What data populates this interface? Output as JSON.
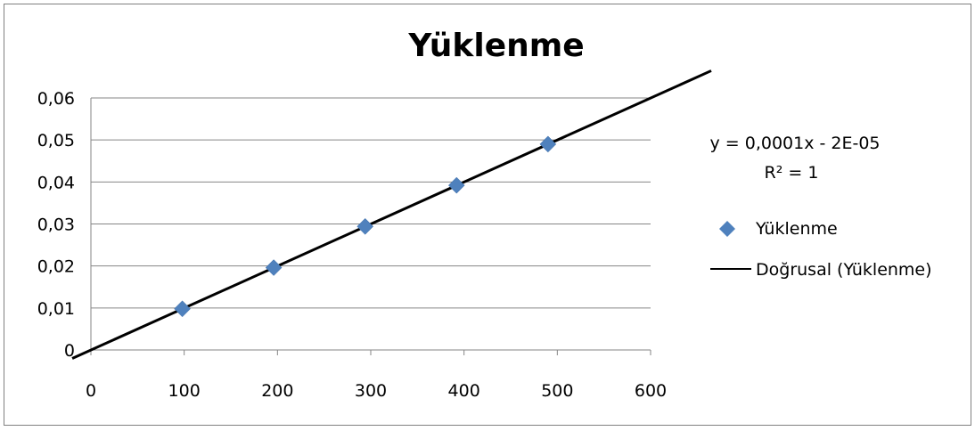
{
  "chart_data": {
    "type": "scatter",
    "title": "Yüklenme",
    "x": [
      98,
      196,
      294,
      392,
      490
    ],
    "series": [
      {
        "name": "Yüklenme",
        "values": [
          0.0098,
          0.0196,
          0.0294,
          0.0392,
          0.049
        ],
        "color": "#4F81BD",
        "marker": "diamond"
      }
    ],
    "trendline": {
      "name": "Doğrusal (Yüklenme)",
      "type": "linear",
      "slope": 0.0001,
      "intercept": -2e-05,
      "color": "#000000"
    },
    "annotations": {
      "equation": "y = 0,0001x - 2E-05",
      "r_squared": "R² = 1"
    },
    "xlim": [
      0,
      600
    ],
    "ylim": [
      0,
      0.06
    ],
    "x_ticks": [
      "0",
      "100",
      "200",
      "300",
      "400",
      "500",
      "600"
    ],
    "y_ticks": [
      "0",
      "0,01",
      "0,02",
      "0,03",
      "0,04",
      "0,05",
      "0,06"
    ],
    "grid": "horizontal",
    "legend_position": "right"
  }
}
